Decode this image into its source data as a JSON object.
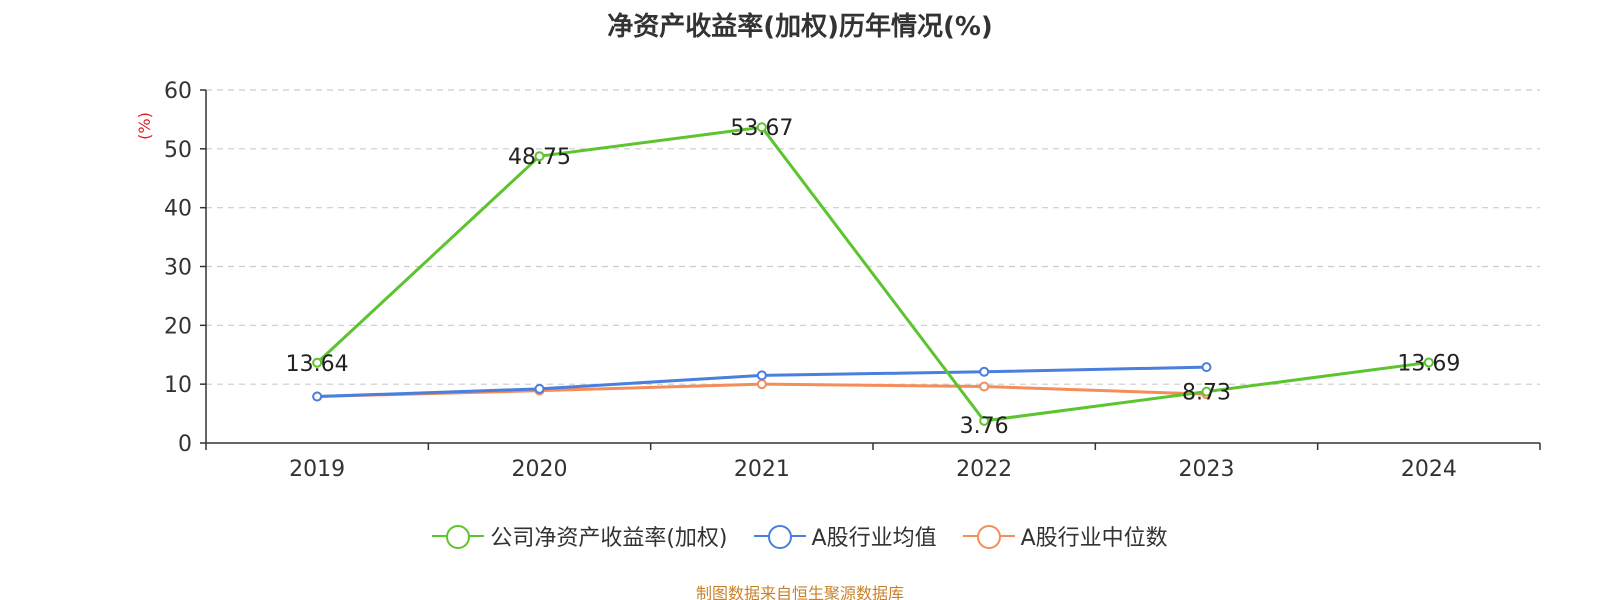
{
  "chart_data": {
    "type": "line",
    "title": "净资产收益率(加权)历年情况(%)",
    "ylabel": "(%)",
    "xlabel": "",
    "categories": [
      "2019",
      "2020",
      "2021",
      "2022",
      "2023",
      "2024"
    ],
    "ylim": [
      0,
      60
    ],
    "yticks": [
      0,
      10,
      20,
      30,
      40,
      50,
      60
    ],
    "grid": "horizontal-dashed",
    "legend_position": "bottom",
    "series": [
      {
        "name": "公司净资产收益率(加权)",
        "color": "#5cc42e",
        "values": [
          13.64,
          48.75,
          53.67,
          3.76,
          8.73,
          13.69
        ],
        "labels": [
          "13.64",
          "48.75",
          "53.67",
          "3.76",
          "8.73",
          "13.69"
        ]
      },
      {
        "name": "A股行业均值",
        "color": "#4a7fde",
        "values": [
          7.9,
          9.2,
          11.5,
          12.1,
          12.9,
          null
        ]
      },
      {
        "name": "A股行业中位数",
        "color": "#f58d5a",
        "values": [
          7.9,
          8.9,
          10.0,
          9.6,
          8.3,
          null
        ]
      }
    ],
    "source": "制图数据来自恒生聚源数据库"
  }
}
